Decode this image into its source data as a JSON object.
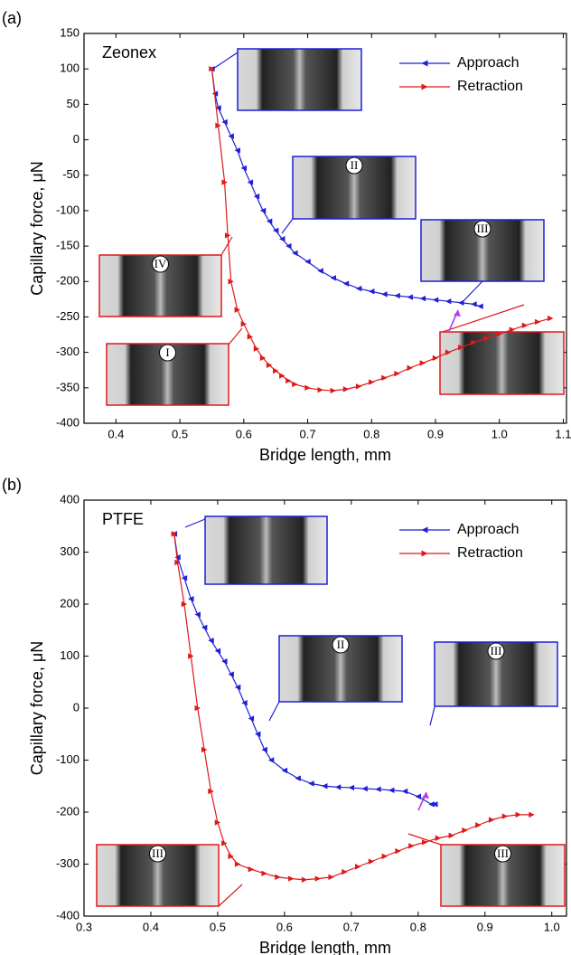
{
  "chart_data": [
    {
      "type": "line",
      "panel_label": "(a)",
      "sample_label": "Zeonex",
      "x_label": "Bridge length, mm",
      "y_label": "Capillary force, μN",
      "xlim": [
        0.35,
        1.105
      ],
      "ylim": [
        -400,
        150
      ],
      "xticks": [
        0.4,
        0.5,
        0.6,
        0.7,
        0.8,
        0.9,
        {
          "value": 1,
          "label": "1.0"
        },
        1.1
      ],
      "yticks": [
        -400,
        -350,
        -300,
        -250,
        -200,
        -150,
        -100,
        -50,
        0,
        50,
        100,
        150
      ],
      "legend": "upper right",
      "inset_labels": [
        "II",
        "III",
        "IV",
        "I"
      ],
      "series": [
        {
          "name": "Approach",
          "color": "#1f1fd6",
          "marker": "left",
          "x": [
            0.55,
            0.555,
            0.56,
            0.57,
            0.58,
            0.59,
            0.6,
            0.61,
            0.62,
            0.63,
            0.64,
            0.65,
            0.66,
            0.67,
            0.68,
            0.7,
            0.72,
            0.74,
            0.76,
            0.78,
            0.8,
            0.82,
            0.84,
            0.86,
            0.88,
            0.9,
            0.92,
            0.94,
            0.96,
            0.97
          ],
          "values": [
            100,
            65,
            45,
            25,
            5,
            -15,
            -40,
            -60,
            -80,
            -100,
            -115,
            -128,
            -140,
            -150,
            -160,
            -172,
            -185,
            -195,
            -203,
            -210,
            -214,
            -218,
            -220,
            -222,
            -224,
            -226,
            -228,
            -230,
            -232,
            -235
          ]
        },
        {
          "name": "Retraction",
          "color": "#e01818",
          "marker": "right",
          "x": [
            0.55,
            0.56,
            0.57,
            0.575,
            0.58,
            0.59,
            0.6,
            0.61,
            0.62,
            0.63,
            0.64,
            0.65,
            0.66,
            0.67,
            0.68,
            0.7,
            0.72,
            0.74,
            0.76,
            0.78,
            0.8,
            0.82,
            0.84,
            0.86,
            0.88,
            0.9,
            0.92,
            0.94,
            0.96,
            0.98,
            1.0,
            1.02,
            1.04,
            1.06,
            1.08
          ],
          "values": [
            100,
            20,
            -60,
            -135,
            -200,
            -240,
            -260,
            -278,
            -295,
            -308,
            -318,
            -326,
            -333,
            -340,
            -345,
            -350,
            -353,
            -354,
            -352,
            -348,
            -342,
            -336,
            -330,
            -322,
            -315,
            -308,
            -300,
            -293,
            -286,
            -280,
            -274,
            -268,
            -262,
            -257,
            -252
          ]
        }
      ]
    },
    {
      "type": "line",
      "panel_label": "(b)",
      "sample_label": "PTFE",
      "x_label": "Bridge length, mm",
      "y_label": "Capillary force, μN",
      "xlim": [
        0.3,
        1.022
      ],
      "ylim": [
        -400,
        400
      ],
      "xticks": [
        0.3,
        0.4,
        0.5,
        0.6,
        0.7,
        0.8,
        0.9,
        {
          "value": 1,
          "label": "1.0"
        }
      ],
      "yticks": [
        -400,
        -300,
        -200,
        -100,
        0,
        100,
        200,
        300,
        400
      ],
      "legend": "upper right",
      "inset_labels": [
        "II",
        "III",
        "III",
        "III"
      ],
      "series": [
        {
          "name": "Approach",
          "color": "#1f1fd6",
          "marker": "left",
          "x": [
            0.435,
            0.44,
            0.45,
            0.46,
            0.47,
            0.48,
            0.49,
            0.5,
            0.51,
            0.52,
            0.53,
            0.54,
            0.55,
            0.56,
            0.57,
            0.58,
            0.6,
            0.62,
            0.64,
            0.66,
            0.68,
            0.7,
            0.72,
            0.74,
            0.76,
            0.78,
            0.8,
            0.82,
            0.825
          ],
          "values": [
            335,
            290,
            250,
            210,
            180,
            155,
            130,
            110,
            90,
            65,
            40,
            10,
            -20,
            -50,
            -80,
            -100,
            -120,
            -135,
            -145,
            -150,
            -152,
            -153,
            -155,
            -156,
            -158,
            -160,
            -170,
            -185,
            -185
          ]
        },
        {
          "name": "Retraction",
          "color": "#e01818",
          "marker": "right",
          "x": [
            0.435,
            0.44,
            0.45,
            0.46,
            0.47,
            0.48,
            0.49,
            0.5,
            0.51,
            0.52,
            0.53,
            0.55,
            0.57,
            0.59,
            0.61,
            0.63,
            0.65,
            0.67,
            0.69,
            0.71,
            0.73,
            0.75,
            0.77,
            0.79,
            0.81,
            0.83,
            0.85,
            0.87,
            0.89,
            0.91,
            0.93,
            0.95,
            0.97
          ],
          "values": [
            335,
            280,
            200,
            100,
            0,
            -80,
            -160,
            -220,
            -260,
            -285,
            -300,
            -310,
            -318,
            -325,
            -328,
            -330,
            -328,
            -325,
            -315,
            -305,
            -295,
            -285,
            -275,
            -265,
            -258,
            -250,
            -245,
            -235,
            -225,
            -215,
            -208,
            -205,
            -205
          ]
        }
      ]
    }
  ]
}
